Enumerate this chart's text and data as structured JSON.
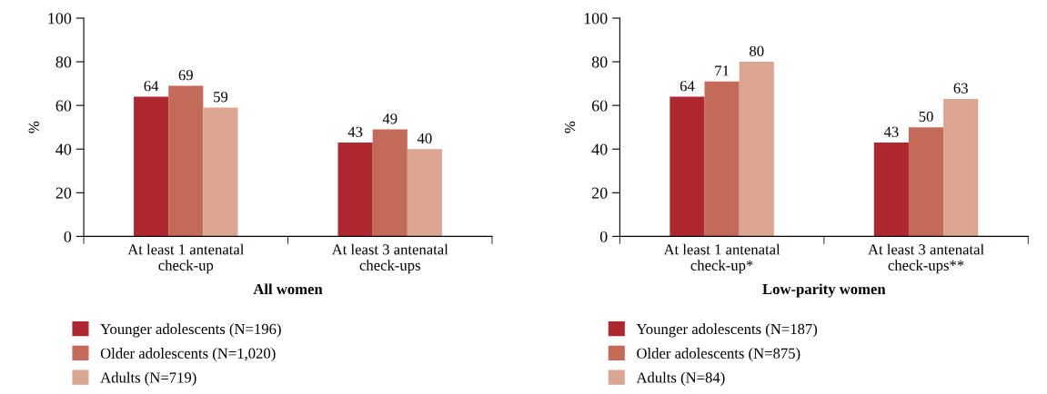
{
  "chart_data": [
    {
      "type": "bar",
      "xlabel": "All women",
      "ylabel": "%",
      "categories": [
        "At least 1 antenatal\ncheck-up",
        "At least 3 antenatal\ncheck-ups"
      ],
      "ylim": [
        0,
        100
      ],
      "yticks": [
        0,
        20,
        40,
        60,
        80,
        100
      ],
      "data_labels": true,
      "legend": "bottom left",
      "grid": false,
      "series": [
        {
          "name": "Younger adolescents (N=196)",
          "color": "#b0282f",
          "values": [
            64,
            43
          ]
        },
        {
          "name": "Older adolescents (N=1,020)",
          "color": "#c46a58",
          "values": [
            69,
            49
          ]
        },
        {
          "name": "Adults (N=719)",
          "color": "#dca592",
          "values": [
            59,
            40
          ]
        }
      ]
    },
    {
      "type": "bar",
      "xlabel": "Low-parity women",
      "ylabel": "%",
      "categories": [
        "At least 1 antenatal\ncheck-up*",
        "At least 3 antenatal\ncheck-ups**"
      ],
      "ylim": [
        0,
        100
      ],
      "yticks": [
        0,
        20,
        40,
        60,
        80,
        100
      ],
      "data_labels": true,
      "legend": "bottom left",
      "grid": false,
      "series": [
        {
          "name": "Younger adolescents (N=187)",
          "color": "#b0282f",
          "values": [
            64,
            43
          ]
        },
        {
          "name": "Older adolescents (N=875)",
          "color": "#c46a58",
          "values": [
            71,
            50
          ]
        },
        {
          "name": "Adults (N=84)",
          "color": "#dca592",
          "values": [
            80,
            63
          ]
        }
      ]
    }
  ]
}
